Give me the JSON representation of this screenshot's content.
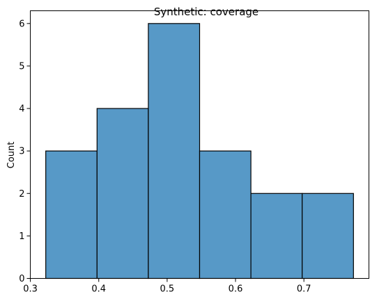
{
  "chart_data": {
    "type": "bar",
    "title": "Synthetic: coverage",
    "xlabel": "",
    "ylabel": "Count",
    "bin_edges": [
      0.3225,
      0.3975,
      0.4725,
      0.5475,
      0.6225,
      0.6975,
      0.7725
    ],
    "values": [
      3,
      4,
      6,
      3,
      2,
      2
    ],
    "xlim": [
      0.2999,
      0.7951
    ],
    "ylim": [
      0,
      6.3
    ],
    "x_ticks": [
      {
        "value": 0.3,
        "label": "0.3"
      },
      {
        "value": 0.4,
        "label": "0.4"
      },
      {
        "value": 0.5,
        "label": "0.5"
      },
      {
        "value": 0.6,
        "label": "0.6"
      },
      {
        "value": 0.7,
        "label": "0.7"
      }
    ],
    "y_ticks": [
      {
        "value": 0,
        "label": "0"
      },
      {
        "value": 1,
        "label": "1"
      },
      {
        "value": 2,
        "label": "2"
      },
      {
        "value": 3,
        "label": "3"
      },
      {
        "value": 4,
        "label": "4"
      },
      {
        "value": 5,
        "label": "5"
      },
      {
        "value": 6,
        "label": "6"
      }
    ],
    "grid": false,
    "bar_color": "#5799c7",
    "edge_color": "#000000"
  }
}
